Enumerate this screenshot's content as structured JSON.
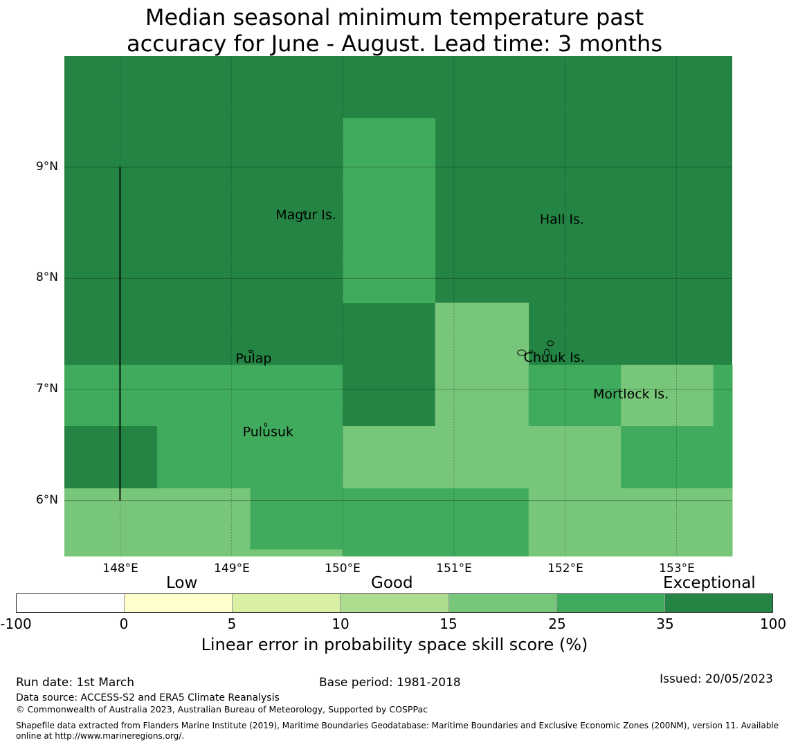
{
  "title": {
    "line1": "Median seasonal minimum temperature past",
    "line2": "accuracy for June - August. Lead time: 3 months"
  },
  "map": {
    "lon_range": [
      147.5,
      153.5
    ],
    "lat_range": [
      5.5,
      10.0
    ],
    "lon_ticks": [
      {
        "value": 148,
        "label": "148°E"
      },
      {
        "value": 149,
        "label": "149°E"
      },
      {
        "value": 150,
        "label": "150°E"
      },
      {
        "value": 151,
        "label": "151°E"
      },
      {
        "value": 152,
        "label": "152°E"
      },
      {
        "value": 153,
        "label": "153°E"
      }
    ],
    "lat_ticks": [
      {
        "value": 9,
        "label": "9°N"
      },
      {
        "value": 8,
        "label": "8°N"
      },
      {
        "value": 7,
        "label": "7°N"
      },
      {
        "value": 6,
        "label": "6°N"
      }
    ],
    "default_skill_category": 6,
    "skill_cells": [
      {
        "lon": [
          150.0,
          150.83
        ],
        "lat": [
          7.78,
          9.44
        ],
        "category": 5
      },
      {
        "lon": [
          150.83,
          151.67
        ],
        "lat": [
          6.67,
          7.78
        ],
        "category": 4
      },
      {
        "lon": [
          147.5,
          150.0
        ],
        "lat": [
          6.11,
          7.22
        ],
        "category": 5
      },
      {
        "lon": [
          147.5,
          148.33
        ],
        "lat": [
          6.11,
          6.67
        ],
        "category": 6
      },
      {
        "lon": [
          151.67,
          152.5
        ],
        "lat": [
          6.67,
          7.22
        ],
        "category": 5
      },
      {
        "lon": [
          152.5,
          153.33
        ],
        "lat": [
          6.67,
          7.22
        ],
        "category": 4
      },
      {
        "lon": [
          153.33,
          153.5
        ],
        "lat": [
          6.67,
          7.22
        ],
        "category": 5
      },
      {
        "lon": [
          150.0,
          151.67
        ],
        "lat": [
          6.11,
          6.67
        ],
        "category": 4
      },
      {
        "lon": [
          151.67,
          152.5
        ],
        "lat": [
          6.11,
          6.67
        ],
        "category": 4
      },
      {
        "lon": [
          152.5,
          153.5
        ],
        "lat": [
          6.11,
          6.67
        ],
        "category": 5
      },
      {
        "lon": [
          147.5,
          149.17
        ],
        "lat": [
          5.5,
          6.11
        ],
        "category": 4
      },
      {
        "lon": [
          149.17,
          150.0
        ],
        "lat": [
          5.56,
          6.11
        ],
        "category": 5
      },
      {
        "lon": [
          149.17,
          150.0
        ],
        "lat": [
          5.5,
          5.56
        ],
        "category": 4
      },
      {
        "lon": [
          150.0,
          151.67
        ],
        "lat": [
          5.5,
          6.11
        ],
        "category": 5
      },
      {
        "lon": [
          151.67,
          153.5
        ],
        "lat": [
          5.5,
          6.11
        ],
        "category": 4
      }
    ],
    "boundary_line": {
      "lon": 148.0,
      "lat": [
        6.0,
        9.0
      ]
    },
    "islands": [
      {
        "name": "Magur Is.",
        "lon": 149.67,
        "lat": 8.53
      },
      {
        "name": "Hall Is.",
        "lon": 151.97,
        "lat": 8.49
      },
      {
        "name": "Pulap",
        "lon": 149.2,
        "lat": 7.24
      },
      {
        "name": "Chuuk Is.",
        "lon": 151.9,
        "lat": 7.25
      },
      {
        "name": "Mortlock Is.",
        "lon": 152.59,
        "lat": 6.92
      },
      {
        "name": "Pulusuk",
        "lon": 149.33,
        "lat": 6.58
      }
    ]
  },
  "colorbar": {
    "categories": [
      {
        "label": "Low"
      },
      {
        "label": "Good"
      },
      {
        "label": "Exceptional"
      }
    ],
    "ticks": [
      "-100",
      "0",
      "5",
      "10",
      "15",
      "25",
      "35",
      "100"
    ],
    "colors": [
      "#ffffff",
      "#ffffcc",
      "#d9f0a3",
      "#addd8e",
      "#78c679",
      "#41ab5d",
      "#238443"
    ],
    "title": "Linear error in probability space skill score (%)"
  },
  "footer": {
    "run_date": "Run date: 1st March",
    "base_period": "Base period: 1981-2018",
    "issued": "Issued: 20/05/2023",
    "data_source": "Data source: ACCESS-S2 and ERA5 Climate Reanalysis",
    "copyright": "© Commonwealth of Australia 2023, Australian Bureau of Meteorology, Supported by COSPPac",
    "shapefile_line1": "Shapefile data extracted from Flanders Marine Institute (2019), Maritime Boundaries Geodatabase: Maritime Boundaries and Exclusive Economic Zones (200NM), version 11. Available",
    "shapefile_line2": "online at http://www.marineregions.org/."
  }
}
